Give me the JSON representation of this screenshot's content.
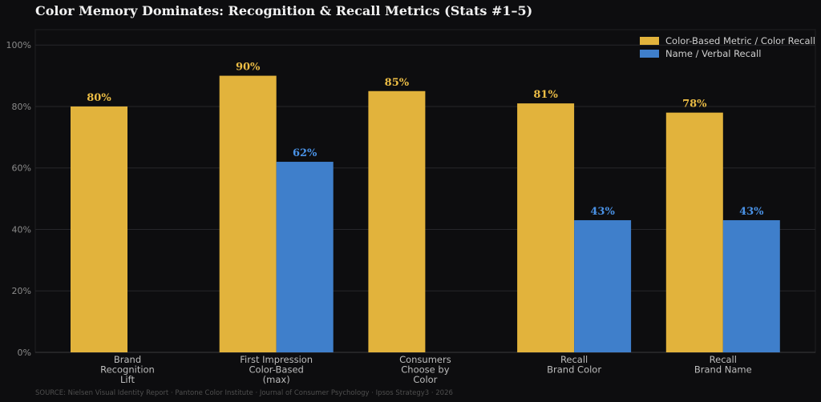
{
  "chart_data": {
    "type": "bar",
    "title": "Color Memory Dominates: Recognition & Recall Metrics (Stats #1–5)",
    "categories": [
      [
        "Brand",
        "Recognition",
        "Lift"
      ],
      [
        "First Impression",
        "Color-Based",
        "(max)"
      ],
      [
        "Consumers",
        "Choose by",
        "Color"
      ],
      [
        "Recall",
        "Brand Color"
      ],
      [
        "Recall",
        "Brand Name"
      ]
    ],
    "series": [
      {
        "name": "Color-Based Metric / Color Recall",
        "color": "#e2b33c",
        "label_color": "#ecbd45",
        "values": [
          80,
          90,
          85,
          81,
          78
        ]
      },
      {
        "name": "Name / Verbal Recall",
        "color": "#3f7fcb",
        "label_color": "#4a92e6",
        "values": [
          null,
          62,
          null,
          43,
          43
        ]
      }
    ],
    "value_suffix": "%",
    "ylim": [
      0,
      105
    ],
    "yticks": [
      0,
      20,
      40,
      60,
      80,
      100
    ],
    "ytick_suffix": "%",
    "grid": true,
    "legend_position": "top-right",
    "source": "SOURCE: Nielsen Visual Identity Report · Pantone Color Institute · Journal of Consumer Psychology · Ipsos Strategy3 · 2026"
  }
}
